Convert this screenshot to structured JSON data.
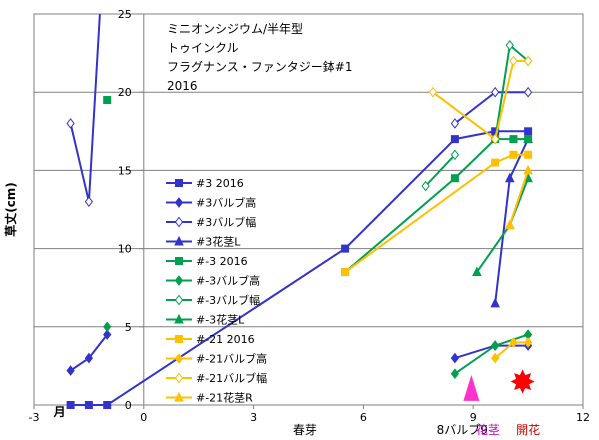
{
  "chart_data": {
    "type": "scatter",
    "title_lines": [
      "ミニオンシジウム/半年型",
      "トゥインクル",
      "フラグナンス・ファンタジー鉢#1",
      "2016"
    ],
    "ylabel": "草丈(cm)",
    "xlim": [
      -3,
      12
    ],
    "ylim": [
      0,
      25
    ],
    "x_ticks": [
      -3,
      0,
      3,
      6,
      9,
      12
    ],
    "y_ticks": [
      0,
      5,
      10,
      15,
      20,
      25
    ],
    "x_annotations": [
      {
        "text": "月",
        "x": -2.3,
        "color": "#000000"
      },
      {
        "text": "春芽",
        "x": 4.4,
        "color": "#000000"
      },
      {
        "text": "8バルブ9",
        "x": 8.7,
        "color": "#000000"
      },
      {
        "text": "花茎",
        "x": 9.4,
        "color": "#CC00CC"
      },
      {
        "text": "開花",
        "x": 10.5,
        "color": "#CC0000"
      }
    ],
    "markers": [
      {
        "shape": "triangle",
        "x": 8.95,
        "y": 0.9,
        "color": "#FF33CC"
      },
      {
        "shape": "star",
        "x": 10.35,
        "y": 1.5,
        "color": "#FF0000"
      }
    ],
    "series": [
      {
        "name": "#3 2016",
        "color": "#3333CC",
        "marker": "square",
        "filled": true,
        "points": [
          [
            -2,
            0
          ],
          [
            -1.5,
            0
          ],
          [
            -1,
            0
          ],
          [
            5.5,
            10
          ],
          [
            8.5,
            17
          ],
          [
            9.6,
            17.5
          ],
          [
            10.5,
            17.5
          ]
        ]
      },
      {
        "name": "#3バルブ高",
        "color": "#3333CC",
        "marker": "diamond",
        "filled": true,
        "points": [
          [
            -2,
            2.2
          ],
          [
            -1.5,
            3
          ],
          [
            -1,
            4.5
          ],
          [
            null,
            null
          ],
          [
            8.5,
            3
          ],
          [
            9.6,
            3.8
          ],
          [
            10.5,
            3.8
          ]
        ]
      },
      {
        "name": "#3バルブ幅",
        "color": "#3333CC",
        "marker": "diamond",
        "filled": false,
        "points": [
          [
            -2,
            18
          ],
          [
            -1.5,
            13
          ],
          [
            -1.2,
            25
          ],
          [
            null,
            null
          ],
          [
            8.5,
            18
          ],
          [
            9.6,
            20
          ],
          [
            10.5,
            20
          ]
        ]
      },
      {
        "name": "#3花茎L",
        "color": "#3333CC",
        "marker": "triangle",
        "filled": true,
        "points": [
          [
            9.6,
            6.5
          ],
          [
            10.0,
            14.5
          ],
          [
            10.5,
            17
          ]
        ]
      },
      {
        "name": "#-3 2016",
        "color": "#00A050",
        "marker": "square",
        "filled": true,
        "points": [
          [
            -1,
            19.5
          ],
          [
            null,
            null
          ],
          [
            5.5,
            8.5
          ],
          [
            8.5,
            14.5
          ],
          [
            9.6,
            17
          ],
          [
            10.1,
            17
          ],
          [
            10.5,
            17
          ]
        ]
      },
      {
        "name": "#-3バルブ高",
        "color": "#00A050",
        "marker": "diamond",
        "filled": true,
        "points": [
          [
            -1,
            5
          ],
          [
            null,
            null
          ],
          [
            8.5,
            2
          ],
          [
            9.6,
            3.8
          ],
          [
            10.5,
            4.5
          ]
        ]
      },
      {
        "name": "#-3バルブ幅",
        "color": "#00A050",
        "marker": "diamond",
        "filled": false,
        "points": [
          [
            7.7,
            14
          ],
          [
            8.5,
            16
          ],
          [
            null,
            null
          ],
          [
            9.6,
            17
          ],
          [
            10.0,
            23
          ],
          [
            10.5,
            22
          ]
        ]
      },
      {
        "name": "#-3花茎L",
        "color": "#00A050",
        "marker": "triangle",
        "filled": true,
        "points": [
          [
            9.1,
            8.5
          ],
          [
            10.0,
            11.5
          ],
          [
            10.5,
            14.5
          ]
        ]
      },
      {
        "name": "#-21 2016",
        "color": "#FFC000",
        "marker": "square",
        "filled": true,
        "points": [
          [
            5.5,
            8.5
          ],
          [
            9.6,
            15.5
          ],
          [
            10.1,
            16
          ],
          [
            10.5,
            16
          ]
        ]
      },
      {
        "name": "#-21バルブ高",
        "color": "#FFC000",
        "marker": "diamond",
        "filled": true,
        "points": [
          [
            9.6,
            3
          ],
          [
            10.1,
            4
          ],
          [
            10.5,
            4
          ]
        ]
      },
      {
        "name": "#-21バルブ幅",
        "color": "#FFC000",
        "marker": "diamond",
        "filled": false,
        "points": [
          [
            7.9,
            20
          ],
          [
            9.6,
            17
          ],
          [
            10.1,
            22
          ],
          [
            10.5,
            22
          ]
        ]
      },
      {
        "name": "#-21花茎R",
        "color": "#FFC000",
        "marker": "triangle",
        "filled": true,
        "points": [
          [
            10.0,
            11.5
          ],
          [
            10.5,
            15
          ]
        ]
      }
    ]
  }
}
